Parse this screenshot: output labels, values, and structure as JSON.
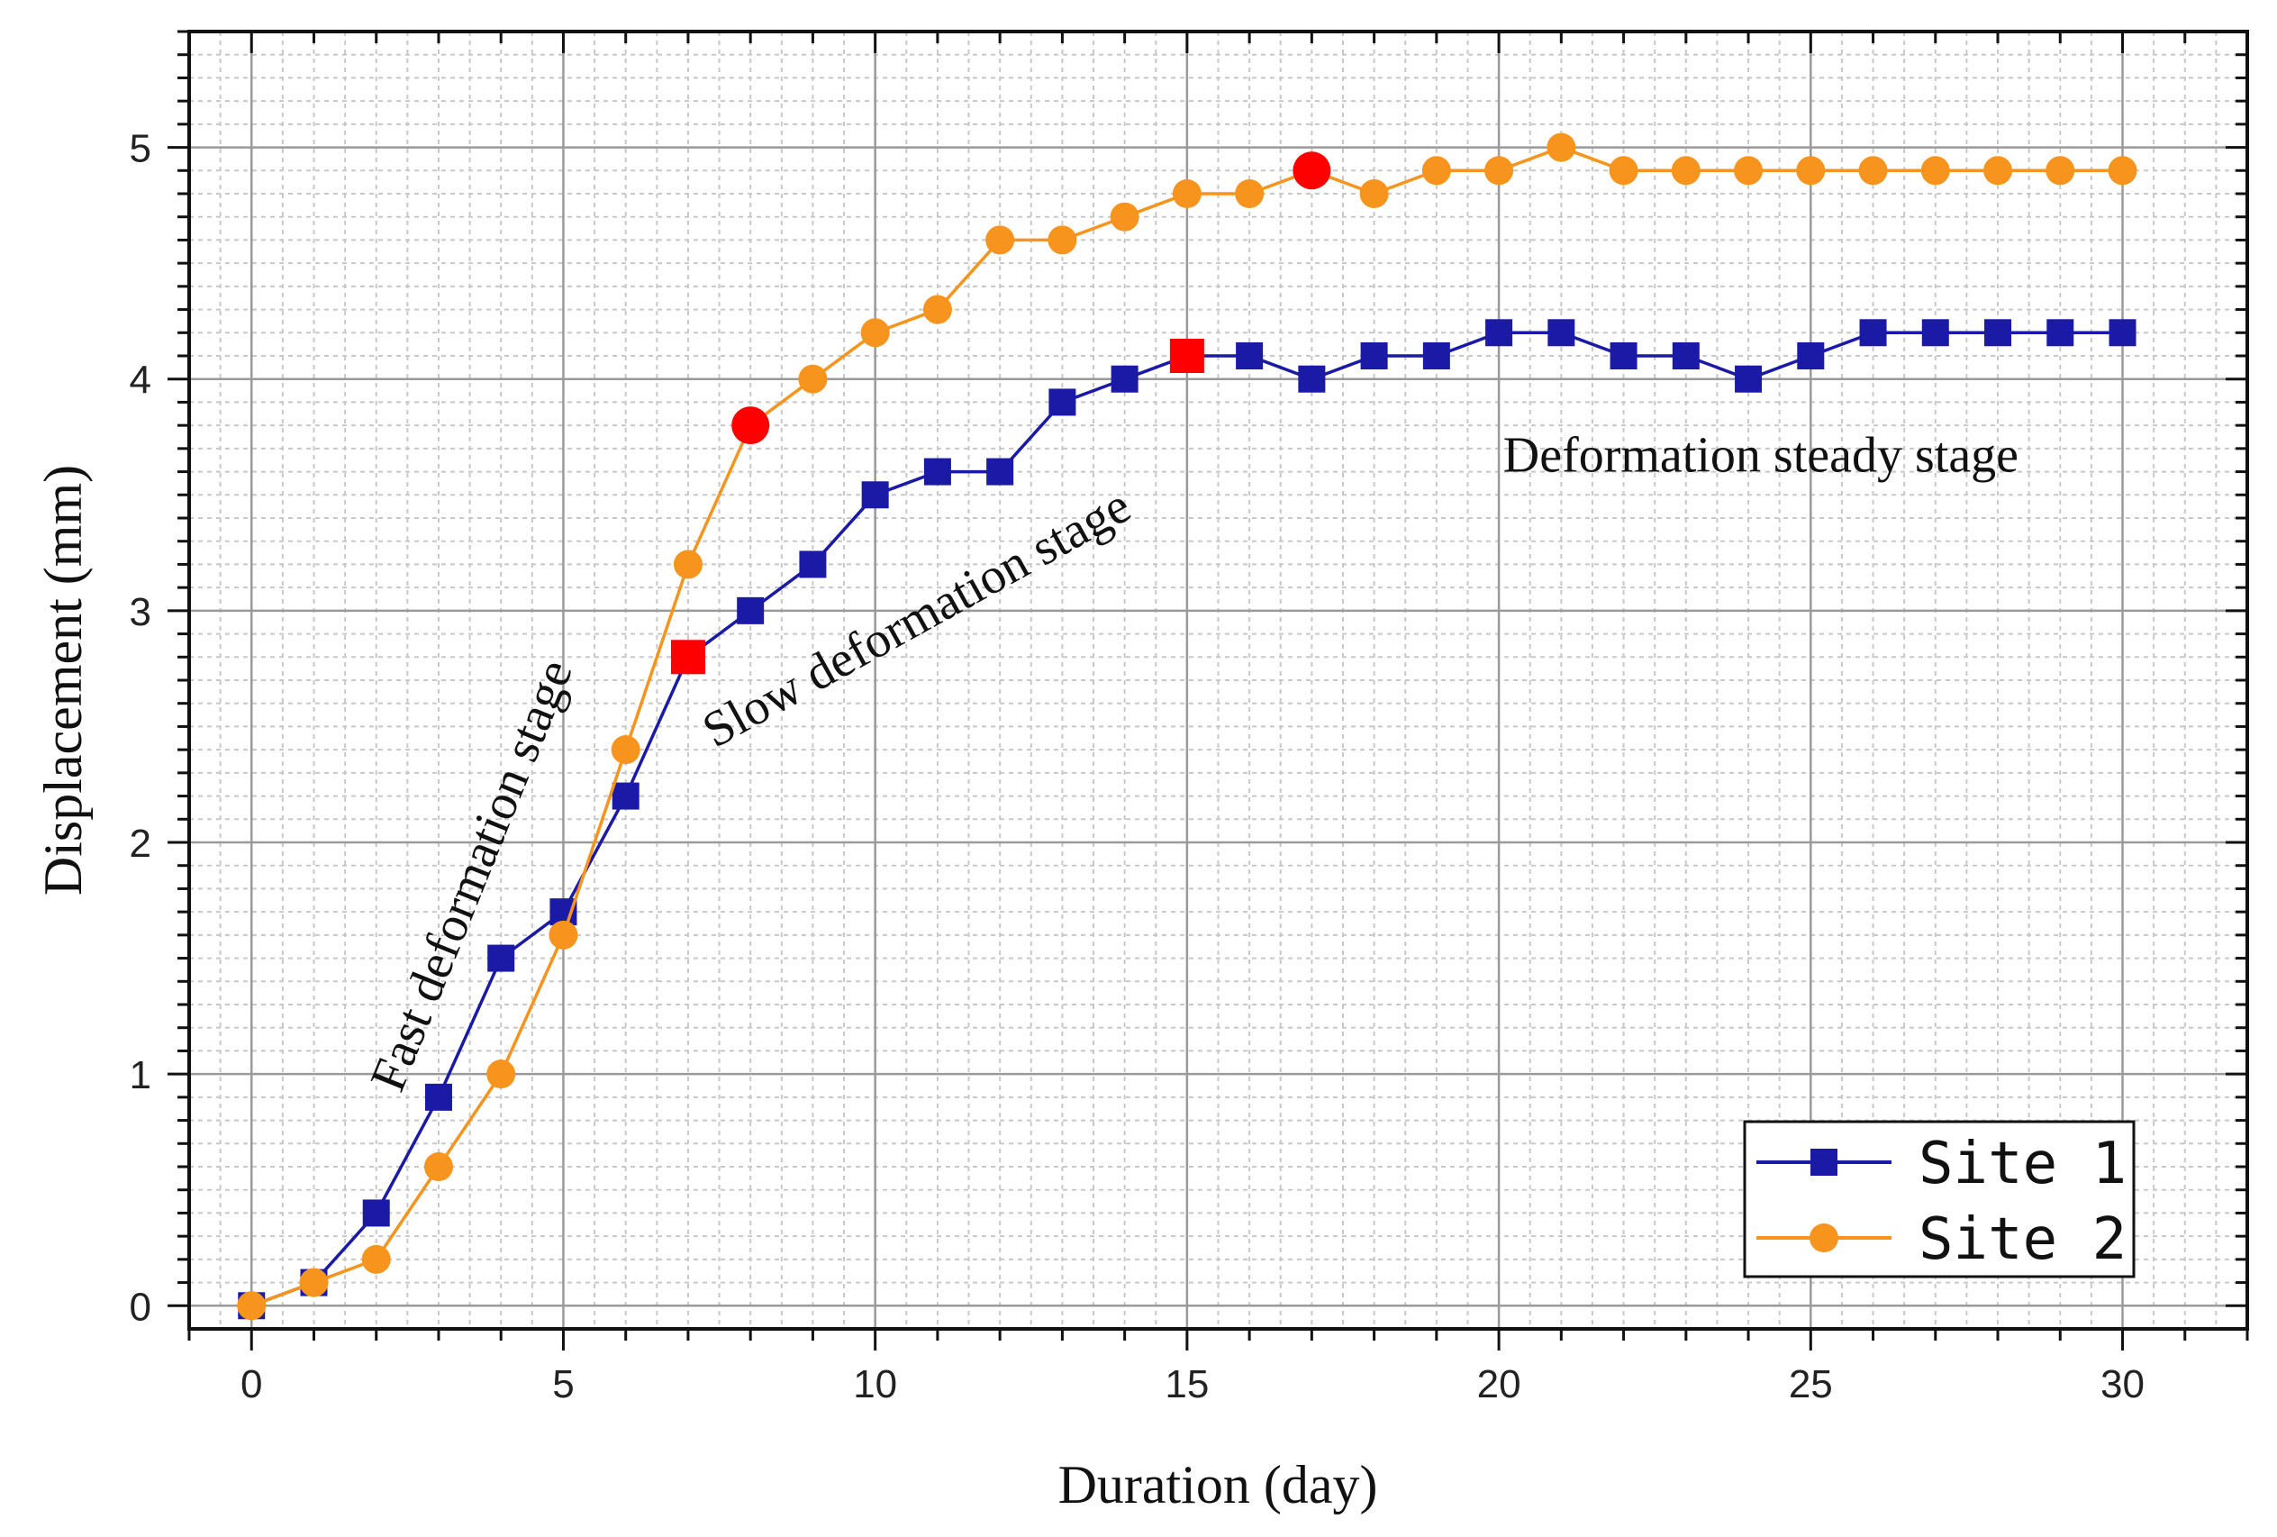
{
  "chart_data": {
    "type": "line",
    "xlabel": "Duration (day)",
    "ylabel": "Displacement (mm)",
    "xlim": [
      -1,
      32
    ],
    "ylim": [
      -0.1,
      5.5
    ],
    "xticks": [
      0,
      5,
      10,
      15,
      20,
      25,
      30
    ],
    "xtick_labels": [
      "0",
      "5",
      "10",
      "15",
      "20",
      "25",
      "30"
    ],
    "yticks": [
      0,
      1,
      2,
      3,
      4,
      5
    ],
    "ytick_labels": [
      "0",
      "1",
      "2",
      "3",
      "4",
      "5"
    ],
    "grid": true,
    "legend_position": "bottom-right",
    "x": [
      0,
      1,
      2,
      3,
      4,
      5,
      6,
      7,
      8,
      9,
      10,
      11,
      12,
      13,
      14,
      15,
      16,
      17,
      18,
      19,
      20,
      21,
      22,
      23,
      24,
      25,
      26,
      27,
      28,
      29,
      30
    ],
    "series": [
      {
        "name": "Site 1",
        "marker": "square",
        "color": "#1a1aa6",
        "values": [
          0,
          0.1,
          0.4,
          0.9,
          1.5,
          1.7,
          2.2,
          2.8,
          3.0,
          3.2,
          3.5,
          3.6,
          3.6,
          3.9,
          4.0,
          4.1,
          4.1,
          4.0,
          4.1,
          4.1,
          4.2,
          4.2,
          4.1,
          4.1,
          4.0,
          4.1,
          4.2,
          4.2,
          4.2,
          4.2,
          4.2
        ],
        "highlight_indices": [
          7,
          15
        ]
      },
      {
        "name": "Site 2",
        "marker": "circle",
        "color": "#f7941d",
        "values": [
          0,
          0.1,
          0.2,
          0.6,
          1.0,
          1.6,
          2.4,
          3.2,
          3.8,
          4.0,
          4.2,
          4.3,
          4.6,
          4.6,
          4.7,
          4.8,
          4.8,
          4.9,
          4.8,
          4.9,
          4.9,
          5.0,
          4.9,
          4.9,
          4.9,
          4.9,
          4.9,
          4.9,
          4.9,
          4.9,
          4.9
        ],
        "highlight_indices": [
          8,
          17
        ]
      }
    ],
    "highlight_color": "#ff0000",
    "annotations": [
      {
        "text": "Fast deformation stage",
        "x": 3.6,
        "y": 1.85,
        "angle": -68
      },
      {
        "text": "Slow deformation stage",
        "x": 10.7,
        "y": 2.95,
        "angle": -29
      },
      {
        "text": "Deformation steady stage",
        "x": 24.2,
        "y": 3.65,
        "angle": 0
      }
    ]
  }
}
